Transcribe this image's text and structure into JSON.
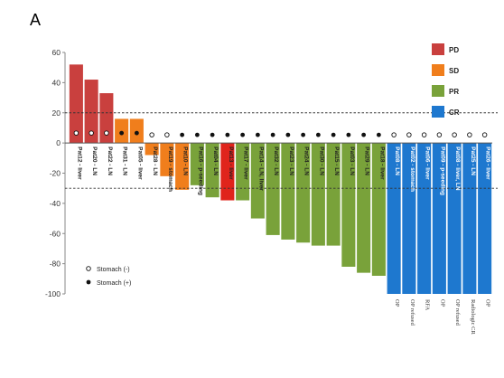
{
  "panel_label": "A",
  "colors": {
    "PD": "#c9403e",
    "SD": "#f07e1c",
    "PR": "#79a23a",
    "CR": "#1e78cf",
    "highlight": "#e0241c"
  },
  "chart_data": {
    "type": "bar",
    "title": "",
    "xlabel": "",
    "ylabel": "",
    "ylim": [
      -100,
      60
    ],
    "yticks": [
      60,
      40,
      20,
      0,
      -20,
      -40,
      -60,
      -80,
      -100
    ],
    "reference_lines": [
      20,
      -30
    ],
    "categories": [
      "Pat12 - liver",
      "Pat20 - LN",
      "Pat22 - LN",
      "Pat31 - LN",
      "Pat05 - liver",
      "Pat28 - LN",
      "Pat19 - stomach",
      "Pat10 - LN",
      "Pat16 - p-seeding",
      "Pat04 - LN",
      "Pat13 - liver",
      "Pat17 - liver",
      "Pat14 - LN, liver",
      "Pat32 - LN",
      "Pat23 - LN",
      "Pat24 - LN",
      "Pat30 - LN",
      "Pat15 - LN",
      "Pat03 - LN",
      "Pat29 - LN",
      "Pat18 - liver",
      "Pat08 - LN",
      "Pat02 - stomach",
      "Pat06 - liver",
      "Pat09 - p-seeding",
      "Pat08 - liver, LN",
      "Pat25 - LN",
      "Pat26 - liver"
    ],
    "values": [
      52,
      42,
      33,
      16,
      16,
      -8,
      -22,
      -31,
      -28,
      -36,
      -38,
      -38,
      -50,
      -61,
      -64,
      -66,
      -68,
      -68,
      -82,
      -86,
      -88,
      -100,
      -100,
      -100,
      -100,
      -100,
      -100,
      -100
    ],
    "response": [
      "PD",
      "PD",
      "PD",
      "SD",
      "SD",
      "SD",
      "SD",
      "SD",
      "PR",
      "PR",
      "PR",
      "PR",
      "PR",
      "PR",
      "PR",
      "PR",
      "PR",
      "PR",
      "PR",
      "PR",
      "PR",
      "CR",
      "CR",
      "CR",
      "CR",
      "CR",
      "CR",
      "CR"
    ],
    "highlight_index": 10,
    "stomach": [
      "-",
      "-",
      "-",
      "+",
      "+",
      "-",
      "-",
      "+",
      "+",
      "+",
      "+",
      "+",
      "+",
      "+",
      "+",
      "+",
      "+",
      "+",
      "+",
      "+",
      "+",
      "-",
      "-",
      "-",
      "-",
      "-",
      "-",
      "-"
    ],
    "notes": [
      "OP",
      "OP refused",
      "RFA",
      "OP",
      "OP refused",
      "Radiologic CR",
      "OP"
    ],
    "legend": [
      "PD",
      "SD",
      "PR",
      "CR"
    ],
    "dot_legend": [
      {
        "marker": "open",
        "label": "Stomach (-)"
      },
      {
        "marker": "filled",
        "label": "Stomach (+)"
      }
    ]
  }
}
